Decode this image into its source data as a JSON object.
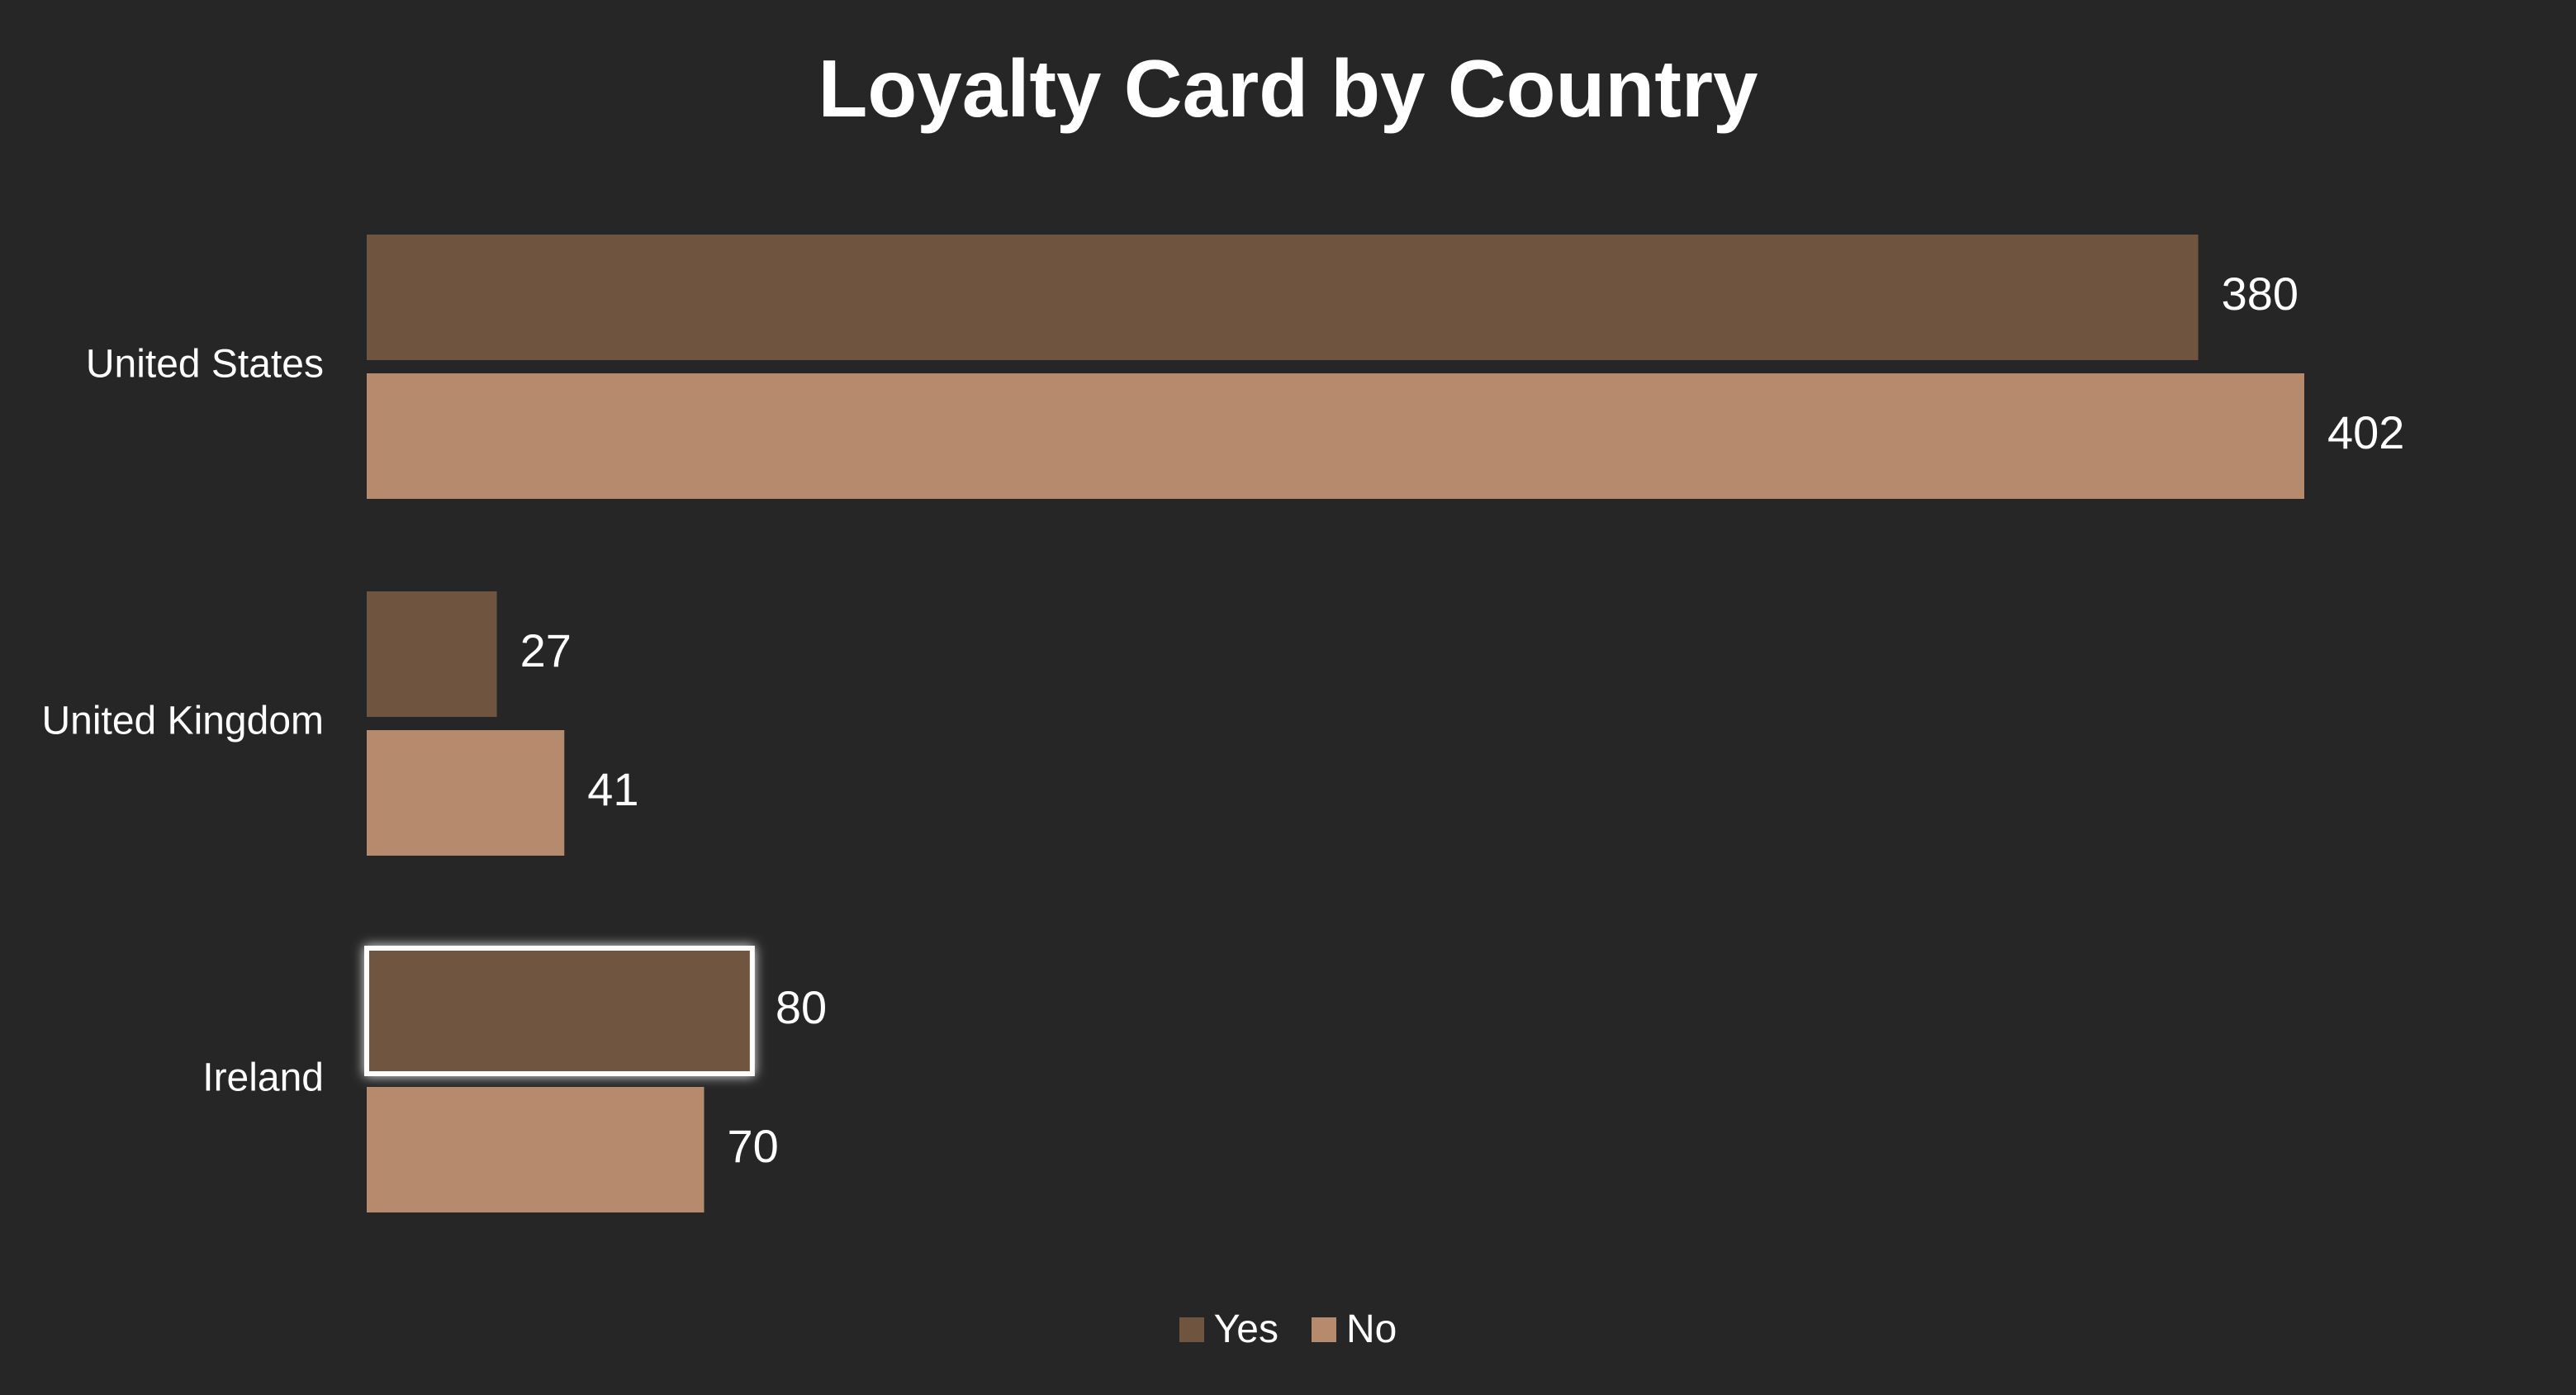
{
  "chart_data": {
    "type": "bar",
    "orientation": "horizontal",
    "title": "Loyalty Card by Country",
    "categories": [
      "United States",
      "United Kingdom",
      "Ireland"
    ],
    "series": [
      {
        "name": "Yes",
        "color": "#6f543f",
        "values": [
          380,
          27,
          80
        ]
      },
      {
        "name": "No",
        "color": "#b68b6d",
        "values": [
          402,
          41,
          70
        ]
      }
    ],
    "xlim": [
      0,
      402
    ],
    "grid": false,
    "legend_position": "bottom",
    "highlighted": {
      "category": "Ireland",
      "series": "Yes"
    }
  }
}
